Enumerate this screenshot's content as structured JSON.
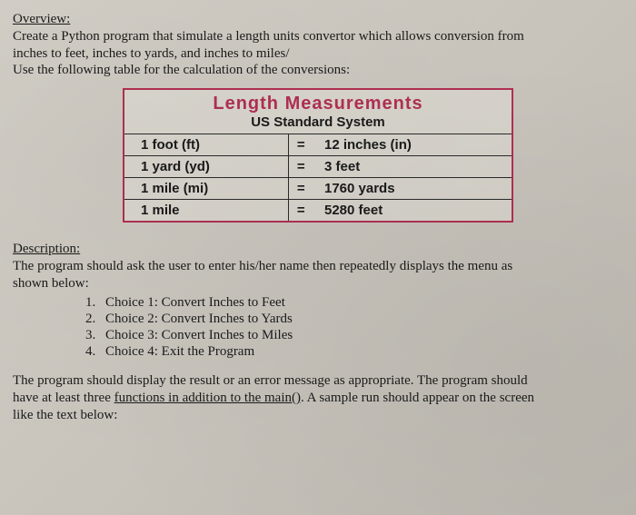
{
  "overview": {
    "heading": "Overview:",
    "line1": "Create a Python program that simulate a length units convertor which allows conversion from",
    "line2": "inches to feet, inches to yards, and inches to miles/",
    "line3": "Use the following table for the calculation of the conversions:"
  },
  "table": {
    "title": "Length Measurements",
    "subtitle": "US Standard System",
    "border_color": "#b03050",
    "title_color": "#b03050",
    "grid_color": "#2a2a2a",
    "font_family": "Comic Sans MS",
    "rows": [
      {
        "left": "1 foot (ft)",
        "eq": "=",
        "right": "12 inches (in)"
      },
      {
        "left": "1 yard (yd)",
        "eq": "=",
        "right": "3 feet"
      },
      {
        "left": "1 mile (mi)",
        "eq": "=",
        "right": "1760 yards"
      },
      {
        "left": "1 mile",
        "eq": "=",
        "right": "5280 feet"
      }
    ]
  },
  "description": {
    "heading": "Description:",
    "line1": "The program should ask the user to enter his/her name then repeatedly displays the menu as",
    "line2": "shown below:"
  },
  "menu": [
    {
      "num": "1.",
      "text": "Choice 1: Convert Inches to Feet"
    },
    {
      "num": "2.",
      "text": "Choice 2: Convert Inches to Yards"
    },
    {
      "num": "3.",
      "text": "Choice 3: Convert Inches to Miles"
    },
    {
      "num": "4.",
      "text": "Choice 4: Exit the Program"
    }
  ],
  "footer": {
    "line1a": "The program should display the result or an error message as appropriate. The program should",
    "line2a": "have at least three ",
    "line2u": "functions in addition to the main()",
    "line2b": ". A sample run should appear on the screen",
    "line3": "like the text below:"
  },
  "colors": {
    "text": "#1a1a1a",
    "background_start": "#d4d0c8",
    "background_end": "#bcb8b0"
  }
}
